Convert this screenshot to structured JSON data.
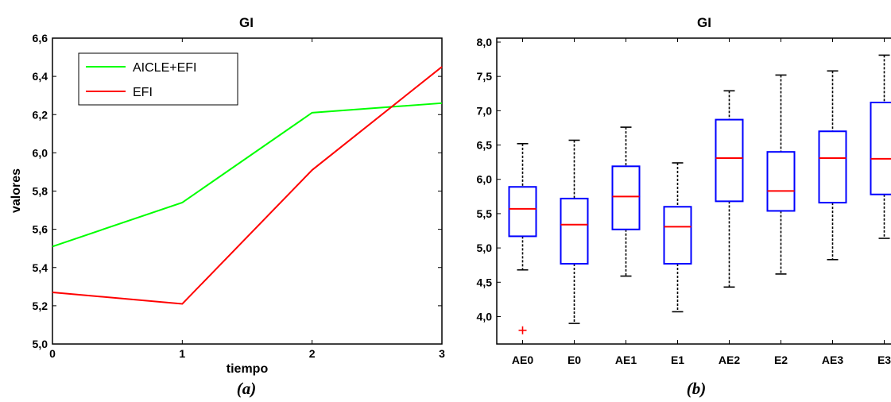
{
  "chart_data": [
    {
      "type": "line",
      "title": "GI",
      "xlabel": "tiempo",
      "ylabel": "valores",
      "panel_label": "(a)",
      "x": [
        0,
        1,
        2,
        3
      ],
      "xlim": [
        0,
        3
      ],
      "ylim": [
        5.0,
        6.6
      ],
      "x_ticks": [
        "0",
        "1",
        "2",
        "3"
      ],
      "y_ticks": [
        "5,0",
        "5,2",
        "5,4",
        "5,6",
        "5,8",
        "6,0",
        "6,2",
        "6,4",
        "6,6"
      ],
      "grid": false,
      "legend_position": "top-left",
      "series": [
        {
          "name": "AICLE+EFI",
          "color": "#00ff00",
          "values": [
            5.51,
            5.74,
            6.21,
            6.26
          ]
        },
        {
          "name": "EFI",
          "color": "#ff0000",
          "values": [
            5.27,
            5.21,
            5.91,
            6.45
          ]
        }
      ]
    },
    {
      "type": "box",
      "title": "GI",
      "panel_label": "(b)",
      "ylim": [
        3.6,
        8.0
      ],
      "y_ticks": [
        "4,0",
        "4,5",
        "5,0",
        "5,5",
        "6,0",
        "6,5",
        "7,0",
        "7,5",
        "8,0"
      ],
      "grid": false,
      "box_color": "#0000ff",
      "median_color": "#ff0000",
      "whisker_color": "#000000",
      "outlier_color": "#ff0000",
      "categories": [
        "AE0",
        "E0",
        "AE1",
        "E1",
        "AE2",
        "E2",
        "AE3",
        "E3"
      ],
      "boxes": [
        {
          "label": "AE0",
          "min": 4.68,
          "q1": 5.17,
          "median": 5.57,
          "q3": 5.89,
          "max": 6.52,
          "outliers": [
            3.8
          ]
        },
        {
          "label": "E0",
          "min": 3.9,
          "q1": 4.77,
          "median": 5.34,
          "q3": 5.72,
          "max": 6.57,
          "outliers": []
        },
        {
          "label": "AE1",
          "min": 4.59,
          "q1": 5.27,
          "median": 5.75,
          "q3": 6.19,
          "max": 6.76,
          "outliers": []
        },
        {
          "label": "E1",
          "min": 4.07,
          "q1": 4.77,
          "median": 5.31,
          "q3": 5.6,
          "max": 6.24,
          "outliers": []
        },
        {
          "label": "AE2",
          "min": 4.43,
          "q1": 5.68,
          "median": 6.31,
          "q3": 6.87,
          "max": 7.29,
          "outliers": []
        },
        {
          "label": "E2",
          "min": 4.62,
          "q1": 5.54,
          "median": 5.83,
          "q3": 6.4,
          "max": 7.52,
          "outliers": []
        },
        {
          "label": "AE3",
          "min": 4.83,
          "q1": 5.66,
          "median": 6.31,
          "q3": 6.7,
          "max": 7.58,
          "outliers": []
        },
        {
          "label": "E3",
          "min": 5.14,
          "q1": 5.78,
          "median": 6.3,
          "q3": 7.12,
          "max": 7.81,
          "outliers": []
        }
      ]
    }
  ]
}
